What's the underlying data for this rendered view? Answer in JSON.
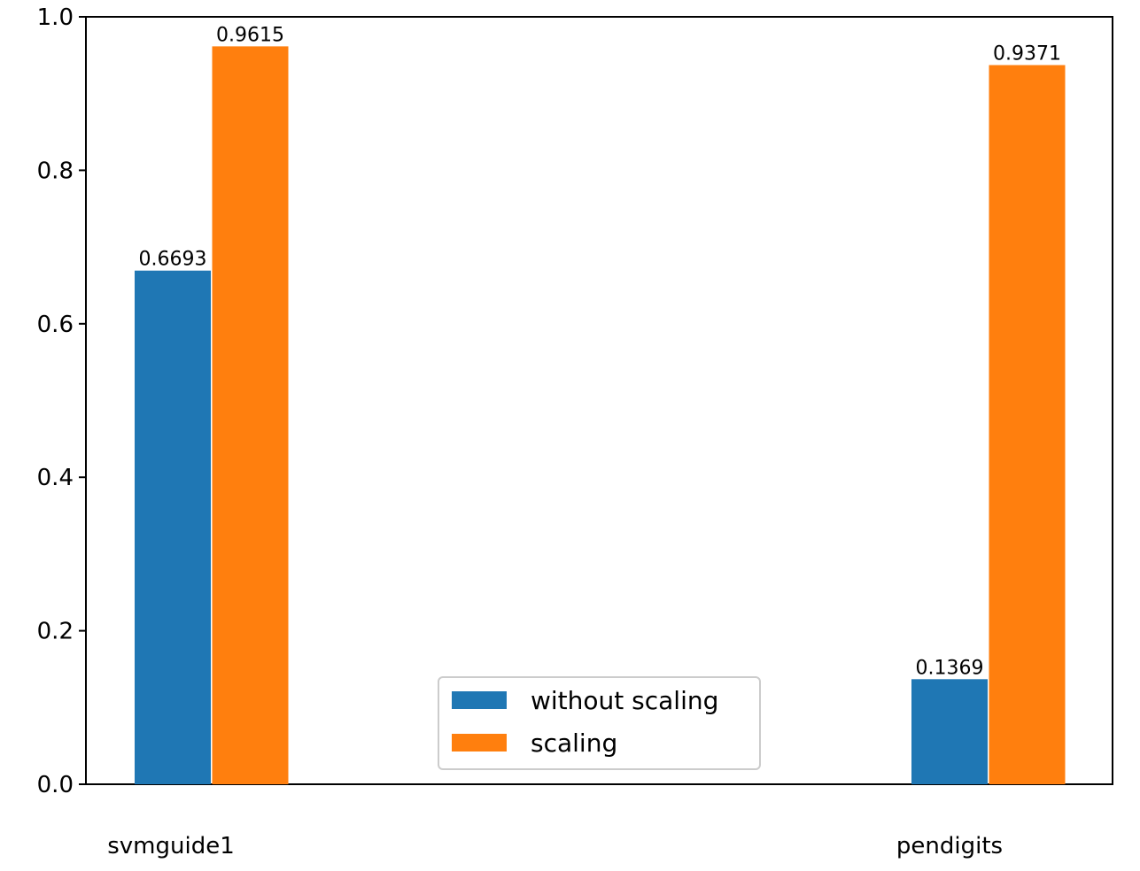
{
  "chart_data": {
    "type": "bar",
    "categories": [
      "svmguide1",
      "pendigits"
    ],
    "series": [
      {
        "name": "without scaling",
        "values": [
          0.6693,
          0.1369
        ],
        "color": "#1f77b4"
      },
      {
        "name": "scaling",
        "values": [
          0.9615,
          0.9371
        ],
        "color": "#ff7f0e"
      }
    ],
    "data_labels": [
      [
        "0.6693",
        "0.1369"
      ],
      [
        "0.9615",
        "0.9371"
      ]
    ],
    "ylim": [
      0,
      1.0
    ],
    "yticks": [
      "0.0",
      "0.2",
      "0.4",
      "0.6",
      "0.8",
      "1.0"
    ],
    "xlabel": "",
    "ylabel": "",
    "grid": false,
    "legend_position": "bottom-center"
  }
}
